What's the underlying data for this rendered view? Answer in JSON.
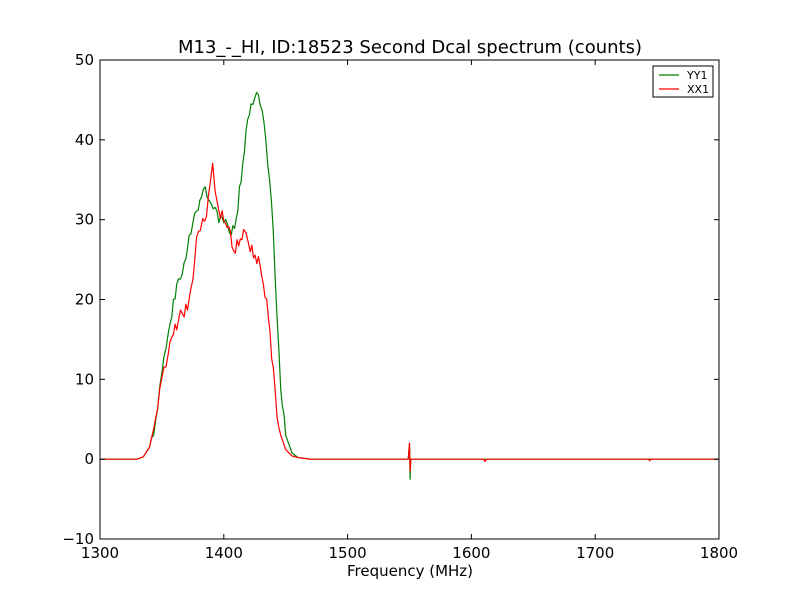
{
  "chart_data": {
    "type": "line",
    "title": "M13_-_HI, ID:18523 Second Dcal spectrum (counts)",
    "xlabel": "Frequency (MHz)",
    "ylabel": "",
    "xlim": [
      1300,
      1800
    ],
    "ylim": [
      -10,
      50
    ],
    "xticks": [
      1300,
      1400,
      1500,
      1600,
      1700,
      1800
    ],
    "yticks": [
      -10,
      0,
      10,
      20,
      30,
      40,
      50
    ],
    "grid": false,
    "legend_position": "top-right",
    "series": [
      {
        "name": "YY1",
        "color": "#008000",
        "x": [
          1300,
          1330,
          1335,
          1340,
          1345,
          1350,
          1355,
          1358,
          1362,
          1365,
          1368,
          1372,
          1375,
          1378,
          1382,
          1385,
          1388,
          1390,
          1393,
          1396,
          1400,
          1403,
          1406,
          1410,
          1414,
          1418,
          1422,
          1425,
          1428,
          1431,
          1434,
          1437,
          1440,
          1443,
          1446,
          1450,
          1455,
          1460,
          1465,
          1470,
          1480,
          1500,
          1549,
          1550,
          1550.5,
          1551,
          1552,
          1600,
          1700,
          1800
        ],
        "y": [
          0,
          0,
          0.3,
          1.5,
          5,
          11,
          15,
          18,
          22,
          23,
          24,
          28,
          30,
          31,
          33,
          34,
          33,
          32,
          31,
          30,
          30,
          29,
          28,
          30,
          35,
          41,
          44.5,
          45.5,
          45,
          44,
          40,
          35,
          28,
          18,
          9,
          3,
          0.8,
          0.2,
          0.1,
          0,
          0,
          0,
          0,
          2,
          -2.5,
          0,
          0,
          0,
          0,
          0
        ]
      },
      {
        "name": "XX1",
        "color": "#ff0000",
        "x": [
          1300,
          1330,
          1335,
          1340,
          1345,
          1350,
          1355,
          1358,
          1362,
          1365,
          1368,
          1372,
          1375,
          1378,
          1381,
          1383,
          1386,
          1389,
          1391,
          1393,
          1396,
          1400,
          1404,
          1408,
          1412,
          1416,
          1418,
          1420,
          1424,
          1428,
          1432,
          1436,
          1440,
          1443,
          1446,
          1450,
          1455,
          1460,
          1465,
          1470,
          1480,
          1500,
          1549,
          1550,
          1550.5,
          1551,
          1552,
          1600,
          1610,
          1611,
          1612,
          1700,
          1743,
          1744,
          1745,
          1800
        ],
        "y": [
          0,
          0,
          0.3,
          1.5,
          5,
          11,
          13,
          15,
          17,
          18,
          18,
          20,
          23,
          27,
          29,
          30,
          31,
          34,
          36.5,
          34,
          31,
          30,
          29,
          26,
          27,
          28.5,
          29,
          27,
          25.5,
          25,
          22,
          18,
          11,
          6,
          3,
          1.2,
          0.4,
          0.2,
          0.1,
          0,
          0,
          0,
          0,
          2,
          -1.5,
          0,
          0,
          0,
          0,
          -0.3,
          0,
          0,
          0,
          -0.2,
          0,
          0
        ]
      }
    ]
  }
}
